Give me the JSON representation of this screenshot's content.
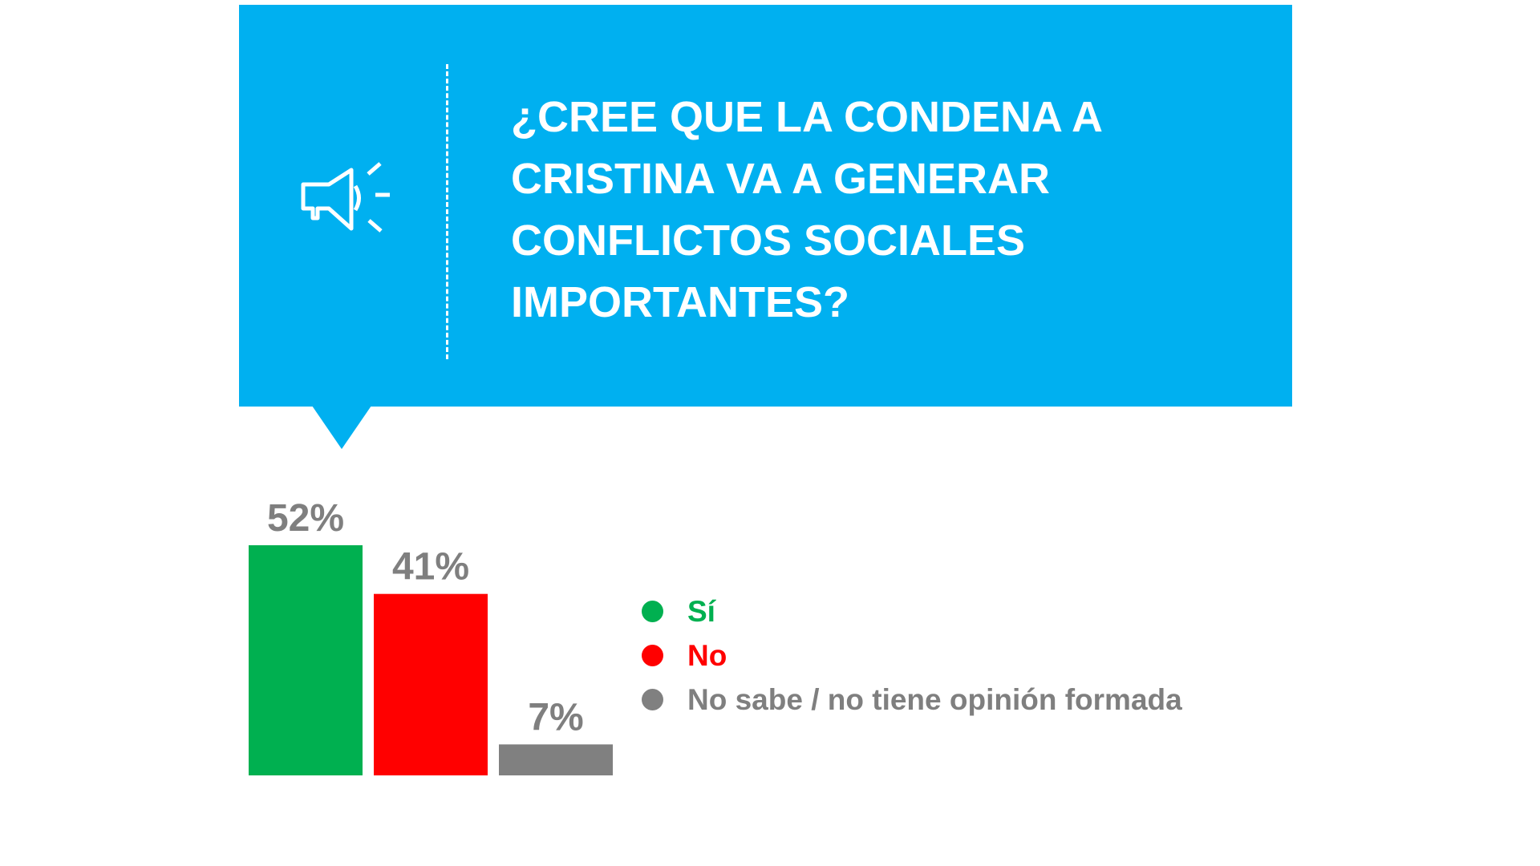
{
  "header": {
    "title_lines": [
      "¿CREE QUE LA CONDENA A",
      "CRISTINA VA A GENERAR",
      "CONFLICTOS SOCIALES",
      "IMPORTANTES?"
    ],
    "icon": "megaphone-icon",
    "background_color": "#00b0f0"
  },
  "chart_data": {
    "type": "bar",
    "categories": [
      "Sí",
      "No",
      "No sabe / no tiene opinión formada"
    ],
    "values": [
      52,
      41,
      7
    ],
    "data_labels": [
      "52%",
      "41%",
      "7%"
    ],
    "colors": [
      "#00b050",
      "#ff0000",
      "#808080"
    ],
    "unit": "%",
    "grid": false,
    "legend_placement": "right",
    "ylim": [
      0,
      52
    ]
  },
  "legend": {
    "items": [
      {
        "label": "Sí",
        "color": "#00b050",
        "text_color": "#00b050"
      },
      {
        "label": "No",
        "color": "#ff0000",
        "text_color": "#ff0000"
      },
      {
        "label": "No sabe / no tiene opinión formada",
        "color": "#808080",
        "text_color": "#7f7f7f"
      }
    ]
  }
}
